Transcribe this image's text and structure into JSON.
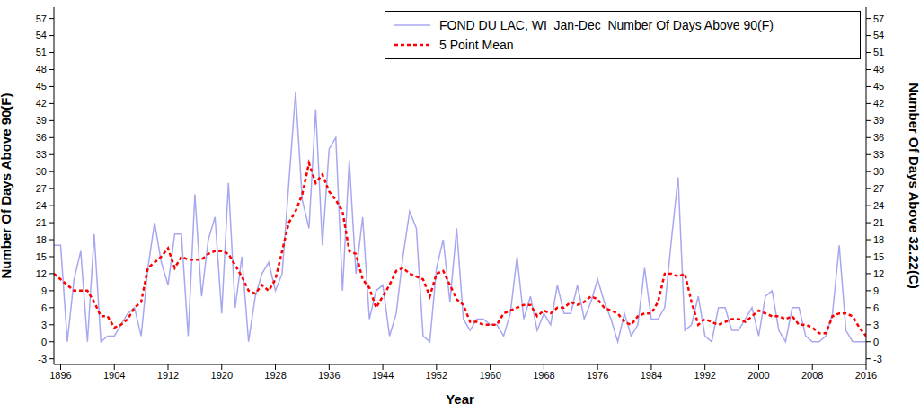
{
  "chart_data": {
    "type": "line",
    "xlabel": "Year",
    "ylabel": "Number Of Days Above 90(F)",
    "y2label": "Number Of Days Above 32.22(C)",
    "x": [
      1895,
      1896,
      1897,
      1898,
      1899,
      1900,
      1901,
      1902,
      1903,
      1904,
      1905,
      1906,
      1907,
      1908,
      1909,
      1910,
      1911,
      1912,
      1913,
      1914,
      1915,
      1916,
      1917,
      1918,
      1919,
      1920,
      1921,
      1922,
      1923,
      1924,
      1925,
      1926,
      1927,
      1928,
      1929,
      1930,
      1931,
      1932,
      1933,
      1934,
      1935,
      1936,
      1937,
      1938,
      1939,
      1940,
      1941,
      1942,
      1943,
      1944,
      1945,
      1946,
      1947,
      1948,
      1949,
      1950,
      1951,
      1952,
      1953,
      1954,
      1955,
      1956,
      1957,
      1958,
      1959,
      1960,
      1961,
      1962,
      1963,
      1964,
      1965,
      1966,
      1967,
      1968,
      1969,
      1970,
      1971,
      1972,
      1973,
      1974,
      1975,
      1976,
      1977,
      1978,
      1979,
      1980,
      1981,
      1982,
      1983,
      1984,
      1985,
      1986,
      1987,
      1988,
      1989,
      1990,
      1991,
      1992,
      1993,
      1994,
      1995,
      1996,
      1997,
      1998,
      1999,
      2000,
      2001,
      2002,
      2003,
      2004,
      2005,
      2006,
      2007,
      2008,
      2009,
      2010,
      2011,
      2012,
      2013,
      2014,
      2015,
      2016
    ],
    "series": [
      {
        "name": "FOND DU LAC, WI  Jan-Dec  Number Of Days Above 90(F)",
        "color": "#a8a8f0",
        "line_style": "solid",
        "values": [
          17,
          17,
          0,
          11,
          16,
          0,
          19,
          0,
          1,
          1,
          3,
          5,
          6,
          1,
          13,
          21,
          14,
          10,
          19,
          19,
          1,
          26,
          8,
          18,
          22,
          5,
          28,
          6,
          15,
          0,
          8,
          12,
          14,
          9,
          12,
          28,
          44,
          25,
          20,
          41,
          17,
          34,
          36,
          9,
          32,
          12,
          22,
          4,
          9,
          10,
          1,
          5,
          15,
          23,
          20,
          1,
          0,
          13,
          18,
          7,
          20,
          4,
          2,
          4,
          4,
          3,
          3,
          1,
          5,
          15,
          4,
          8,
          2,
          5,
          3,
          10,
          5,
          5,
          10,
          4,
          7,
          11,
          7,
          4,
          0,
          5,
          1,
          3,
          13,
          4,
          4,
          6,
          18,
          29,
          2,
          3,
          8,
          1,
          0,
          6,
          6,
          2,
          2,
          4,
          6,
          1,
          8,
          9,
          2,
          0,
          6,
          6,
          1,
          0,
          0,
          1,
          5,
          17,
          2,
          0,
          0,
          0
        ]
      },
      {
        "name": "5 Point Mean",
        "color": "#ff0000",
        "line_style": "dashed",
        "values": [
          12,
          11,
          10,
          9,
          9,
          9,
          7,
          4.5,
          4.5,
          2.5,
          3,
          4,
          6,
          7,
          13,
          14,
          15,
          16.5,
          13,
          15,
          14.5,
          14.5,
          14.5,
          15.5,
          16,
          16,
          15.5,
          13.5,
          11.5,
          9,
          8.5,
          10,
          9,
          11,
          16,
          21,
          23,
          26,
          31.5,
          28,
          29.5,
          26.5,
          25,
          23,
          16,
          15.5,
          11,
          9.5,
          6,
          8,
          10,
          12.5,
          13,
          12,
          11.5,
          11,
          8,
          12,
          12.5,
          10,
          7.5,
          6.5,
          3.5,
          3.5,
          3,
          3,
          3,
          5,
          5.5,
          6,
          6.5,
          6.5,
          4.5,
          5.5,
          5,
          6,
          6,
          7,
          6.5,
          7,
          8,
          7.5,
          6,
          5.5,
          5,
          3.5,
          3,
          4.5,
          5,
          5,
          7,
          12,
          12,
          11.5,
          12,
          7,
          3,
          4,
          3.5,
          3,
          3.5,
          4,
          4,
          3.5,
          4.5,
          5.5,
          5,
          4.5,
          4.5,
          4,
          4.5,
          3,
          3,
          2.5,
          1.5,
          1.5,
          4.5,
          5,
          5,
          4.5,
          2.5,
          1
        ]
      }
    ],
    "xlim": [
      1895,
      2016
    ],
    "xticks": [
      1896,
      1904,
      1912,
      1920,
      1928,
      1936,
      1944,
      1952,
      1960,
      1968,
      1976,
      1984,
      1992,
      2000,
      2008,
      2016
    ],
    "ylim": [
      -4,
      59
    ],
    "yticks": [
      -3,
      0,
      3,
      6,
      9,
      12,
      15,
      18,
      21,
      24,
      27,
      30,
      33,
      36,
      39,
      42,
      45,
      48,
      51,
      54,
      57
    ],
    "y2lim": [
      -4,
      59
    ],
    "y2ticks": [
      -3,
      0,
      3,
      6,
      9,
      12,
      15,
      18,
      21,
      24,
      27,
      30,
      33,
      36,
      39,
      42,
      45,
      48,
      51,
      54,
      57
    ],
    "grid": false,
    "legend": "upper right"
  }
}
